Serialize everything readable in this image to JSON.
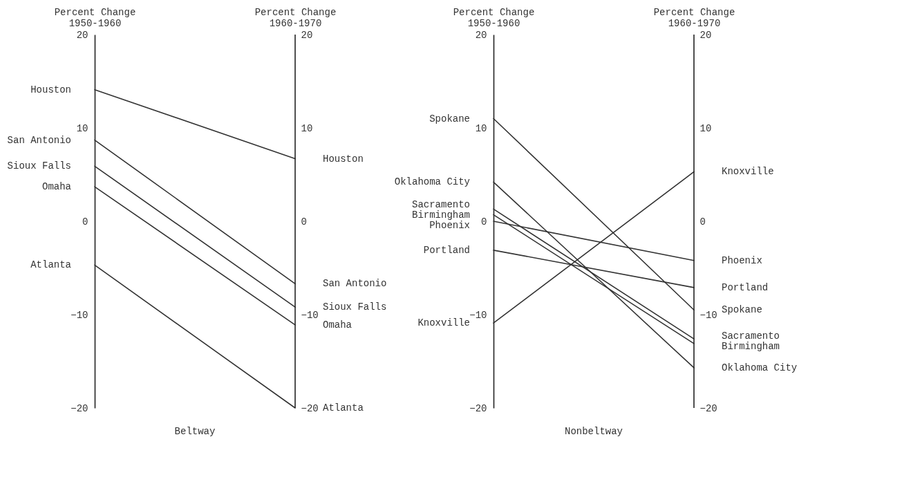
{
  "chart_data": [
    {
      "type": "line",
      "xlabel": "Beltway",
      "categories": [
        "Percent Change\n1950-1960",
        "Percent Change\n1960-1970"
      ],
      "ylim": [
        -20,
        20
      ],
      "yticks": [
        -20,
        -10,
        0,
        10,
        20
      ],
      "y2lim": [
        -20,
        20
      ],
      "y2ticks": [
        -20,
        -10,
        0,
        10,
        20
      ],
      "series": [
        {
          "name": "Houston",
          "color": "#333333",
          "values": [
            14.1,
            6.7
          ]
        },
        {
          "name": "San Antonio",
          "color": "#333333",
          "values": [
            8.7,
            -6.7
          ]
        },
        {
          "name": "Sioux Falls",
          "color": "#333333",
          "values": [
            5.9,
            -9.2
          ]
        },
        {
          "name": "Omaha",
          "color": "#333333",
          "values": [
            3.7,
            -11.1
          ]
        },
        {
          "name": "Atlanta",
          "color": "#333333",
          "values": [
            -4.7,
            -20
          ]
        }
      ]
    },
    {
      "type": "line",
      "xlabel": "Nonbeltway",
      "categories": [
        "Percent Change\n1950-1960",
        "Percent Change\n1960-1970"
      ],
      "ylim": [
        -20,
        20
      ],
      "yticks": [
        -20,
        -10,
        0,
        10,
        20
      ],
      "y2lim": [
        -20,
        20
      ],
      "y2ticks": [
        -20,
        -10,
        0,
        10,
        20
      ],
      "series": [
        {
          "name": "Spokane",
          "color": "#333333",
          "values": [
            11.0,
            -9.5
          ]
        },
        {
          "name": "Oklahoma City",
          "color": "#333333",
          "values": [
            4.2,
            -15.7
          ]
        },
        {
          "name": "Sacramento",
          "color": "#333333",
          "values": [
            1.3,
            -12.6
          ]
        },
        {
          "name": "Birmingham",
          "color": "#333333",
          "values": [
            0.7,
            -13.1
          ]
        },
        {
          "name": "Phoenix",
          "color": "#333333",
          "values": [
            0,
            -4.2
          ]
        },
        {
          "name": "Portland",
          "color": "#333333",
          "values": [
            -3.1,
            -7.1
          ]
        },
        {
          "name": "Knoxville",
          "color": "#333333",
          "values": [
            -10.9,
            5.3
          ]
        }
      ]
    }
  ]
}
